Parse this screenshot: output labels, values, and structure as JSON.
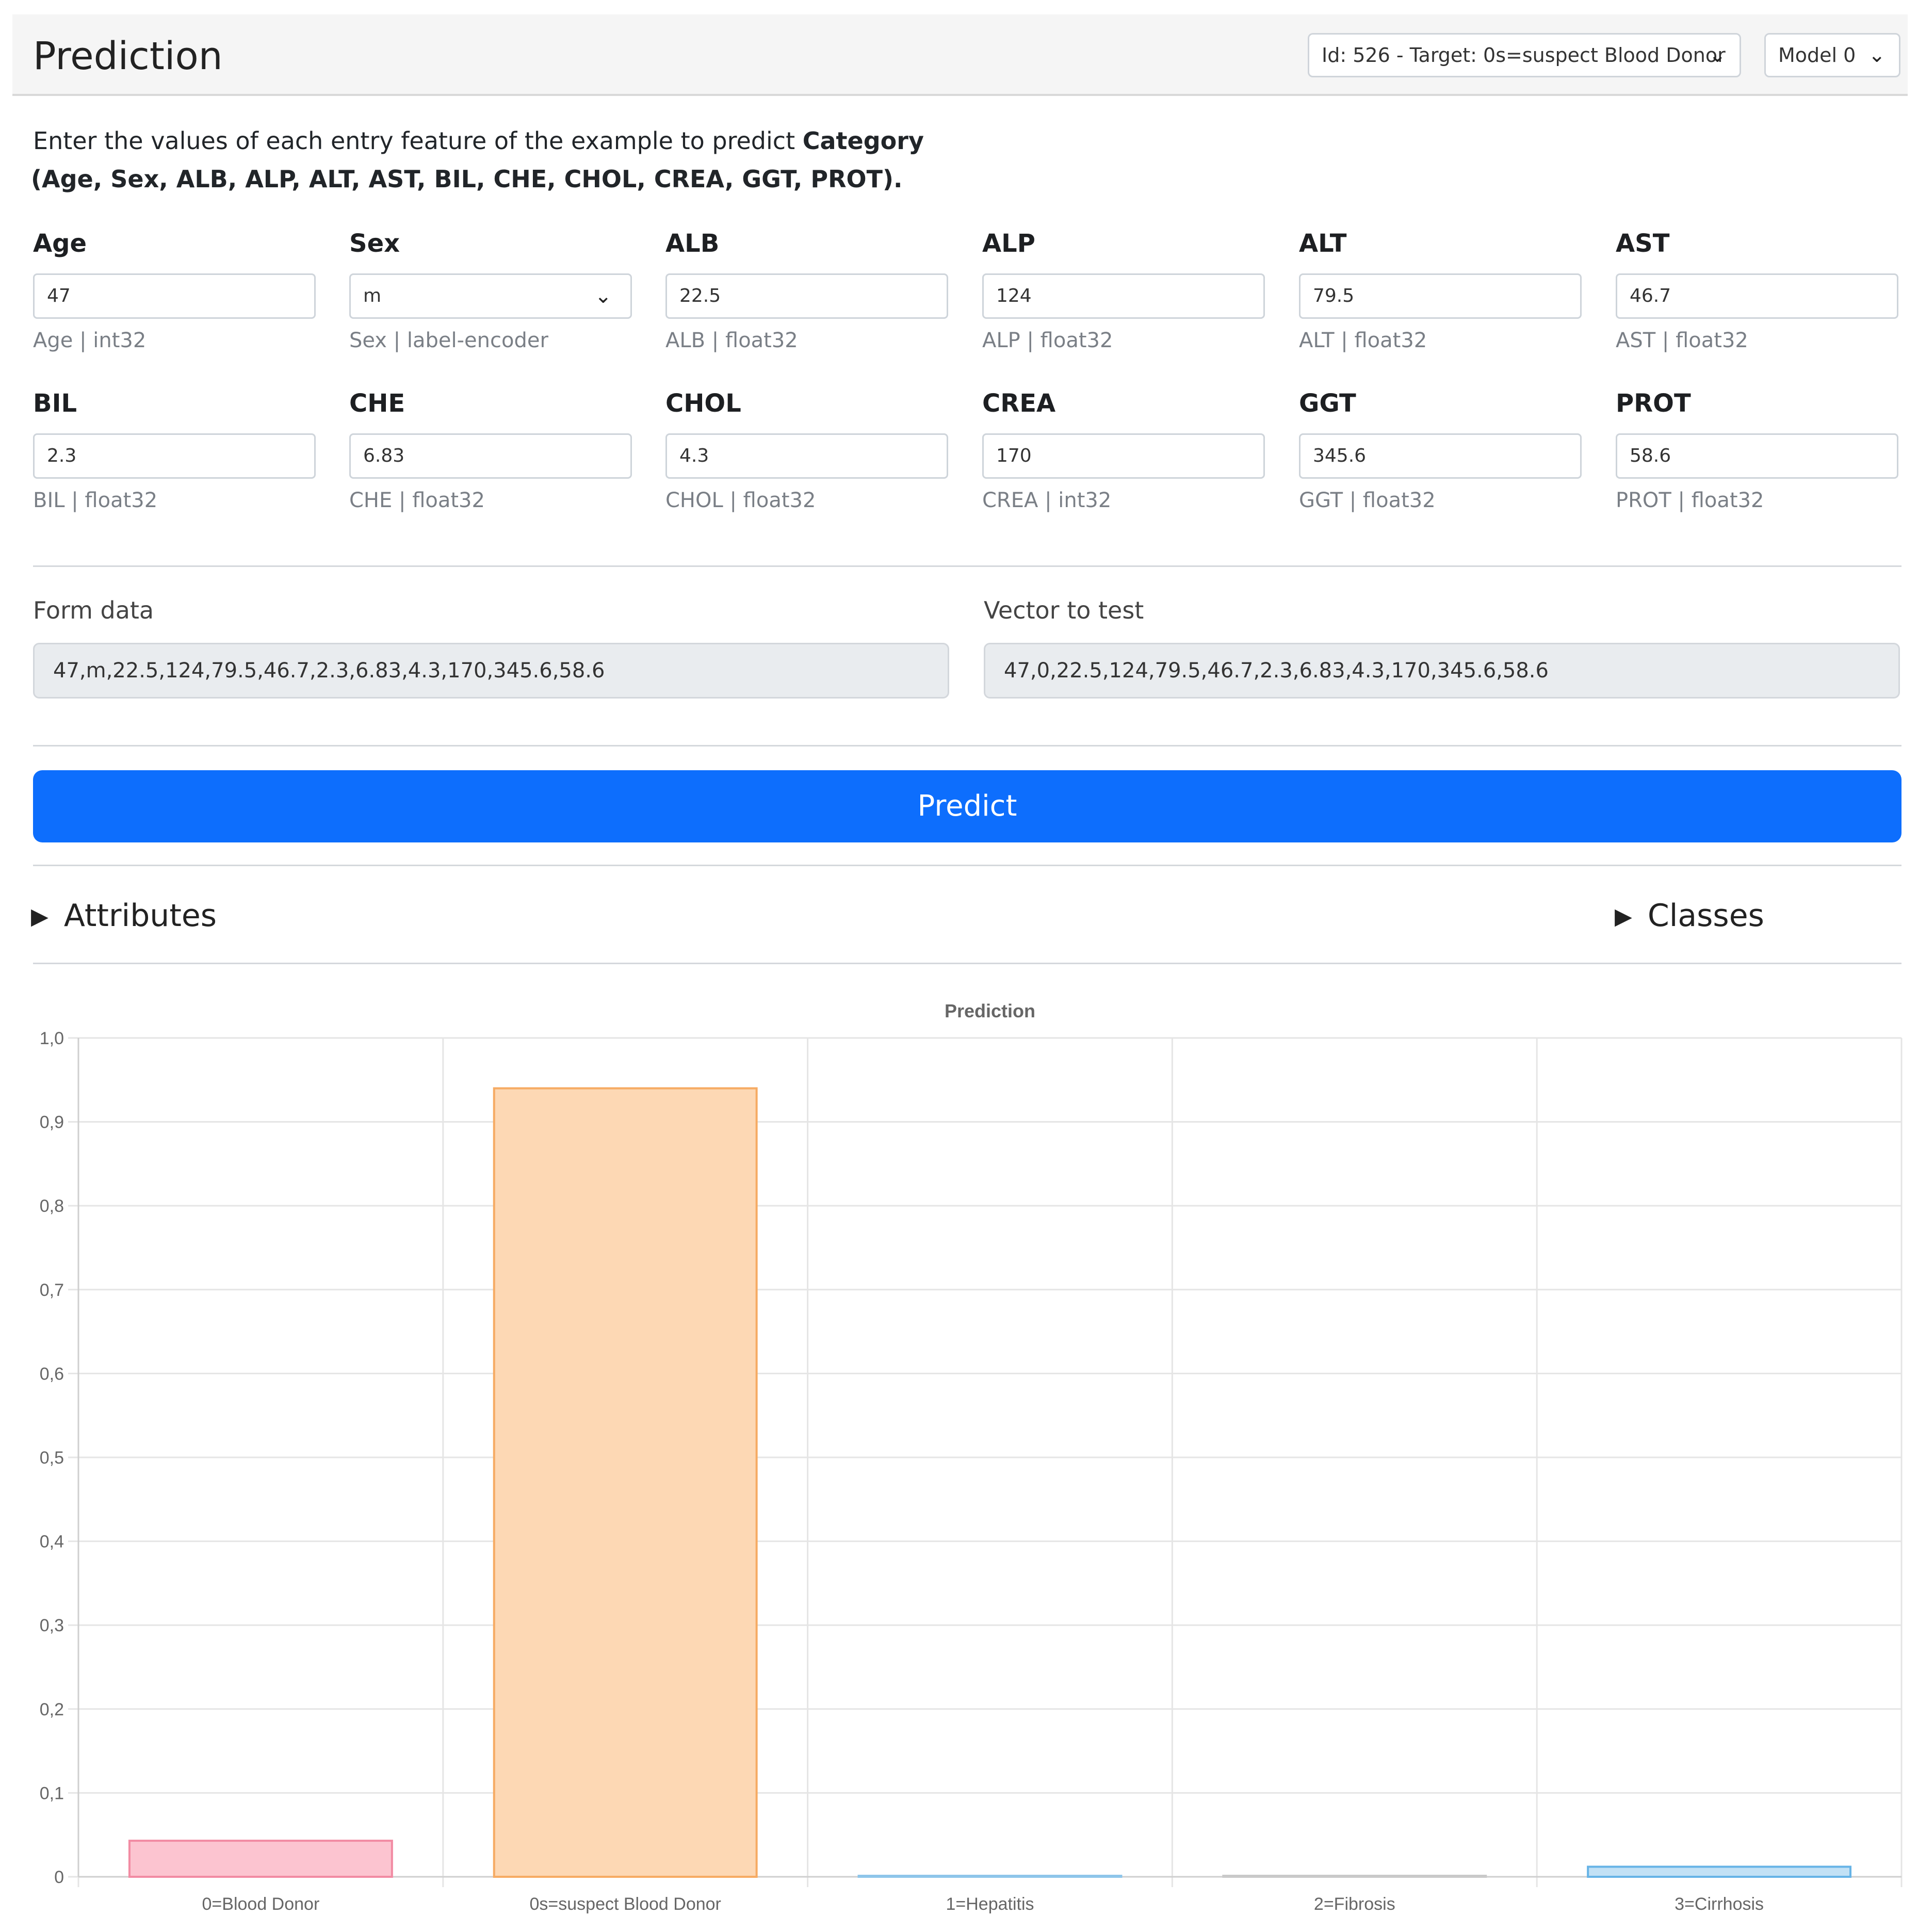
{
  "header": {
    "title": "Prediction",
    "target_select": "Id: 526 - Target: 0s=suspect Blood Donor",
    "model_select": "Model 0"
  },
  "intro": {
    "line1_prefix": "Enter the values of each entry feature of the example to predict ",
    "line1_target": "Category",
    "line2": "(Age, Sex, ALB, ALP, ALT, AST, BIL, CHE, CHOL, CREA, GGT, PROT)."
  },
  "fields": [
    {
      "label": "Age",
      "value": "47",
      "hint": "Age | int32"
    },
    {
      "label": "Sex",
      "value": "m",
      "hint": "Sex | label-encoder"
    },
    {
      "label": "ALB",
      "value": "22.5",
      "hint": "ALB | float32"
    },
    {
      "label": "ALP",
      "value": "124",
      "hint": "ALP | float32"
    },
    {
      "label": "ALT",
      "value": "79.5",
      "hint": "ALT | float32"
    },
    {
      "label": "AST",
      "value": "46.7",
      "hint": "AST | float32"
    },
    {
      "label": "BIL",
      "value": "2.3",
      "hint": "BIL | float32"
    },
    {
      "label": "CHE",
      "value": "6.83",
      "hint": "CHE | float32"
    },
    {
      "label": "CHOL",
      "value": "4.3",
      "hint": "CHOL | float32"
    },
    {
      "label": "CREA",
      "value": "170",
      "hint": "CREA | int32"
    },
    {
      "label": "GGT",
      "value": "345.6",
      "hint": "GGT | float32"
    },
    {
      "label": "PROT",
      "value": "58.6",
      "hint": "PROT | float32"
    }
  ],
  "form_data": {
    "label": "Form data",
    "value": "47,m,22.5,124,79.5,46.7,2.3,6.83,4.3,170,345.6,58.6"
  },
  "vector": {
    "label": "Vector to test",
    "value": "47,0,22.5,124,79.5,46.7,2.3,6.83,4.3,170,345.6,58.6"
  },
  "predict_label": "Predict",
  "sections": {
    "attributes": "Attributes",
    "classes": "Classes"
  },
  "colors": {
    "accent": "#0d6efd",
    "bar_fills": [
      "#fcc4d0",
      "#fdd8b4",
      "#cfe5f3",
      "#e2e2e2",
      "#c2e1f5"
    ],
    "bar_strokes": [
      "#f28ba3",
      "#f6ab63",
      "#8ec5ea",
      "#c9c9c9",
      "#66b3e6"
    ]
  },
  "chart_data": {
    "type": "bar",
    "title": "Prediction",
    "categories": [
      "0=Blood Donor",
      "0s=suspect Blood Donor",
      "1=Hepatitis",
      "2=Fibrosis",
      "3=Cirrhosis"
    ],
    "values": [
      0.043,
      0.94,
      0.0,
      0.001,
      0.012
    ],
    "y_ticks": [
      "0",
      "0,1",
      "0,2",
      "0,3",
      "0,4",
      "0,5",
      "0,6",
      "0,7",
      "0,8",
      "0,9",
      "1,0"
    ],
    "ylim": [
      0,
      1
    ],
    "grid": true,
    "legend": "none"
  }
}
